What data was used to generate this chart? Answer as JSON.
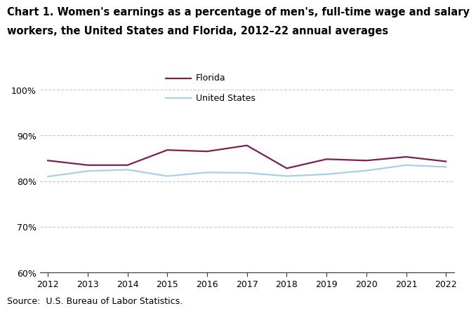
{
  "title_line1": "Chart 1. Women's earnings as a percentage of men's, full-time wage and salary",
  "title_line2": "workers, the United States and Florida, 2012–22 annual averages",
  "years": [
    2012,
    2013,
    2014,
    2015,
    2016,
    2017,
    2018,
    2019,
    2020,
    2021,
    2022
  ],
  "florida": [
    84.5,
    83.5,
    83.5,
    86.8,
    86.5,
    87.8,
    82.8,
    84.8,
    84.5,
    85.3,
    84.3
  ],
  "us": [
    81.0,
    82.2,
    82.5,
    81.1,
    81.9,
    81.8,
    81.1,
    81.5,
    82.3,
    83.5,
    83.1
  ],
  "florida_color": "#7b2051",
  "us_color": "#a8d0e6",
  "ylim": [
    60,
    102
  ],
  "yticks": [
    60,
    70,
    80,
    90,
    100
  ],
  "xlim": [
    2011.8,
    2022.2
  ],
  "source": "Source:  U.S. Bureau of Labor Statistics.",
  "legend_labels": [
    "Florida",
    "United States"
  ],
  "grid_color": "#c8c8c8",
  "background_color": "#ffffff",
  "title_fontsize": 10.5,
  "tick_fontsize": 9,
  "source_fontsize": 9
}
